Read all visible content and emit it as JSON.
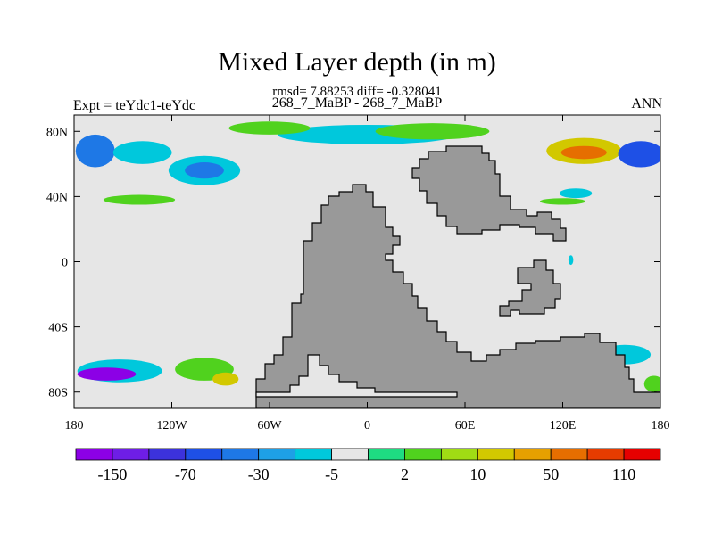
{
  "chart_data": {
    "type": "heatmap",
    "title": "Mixed Layer depth (in m)",
    "stats_line": "rmsd= 7.88253 diff= -0.328041",
    "subtitle": "268_7_MaBP - 268_7_MaBP",
    "left_label": "Expt = teYdc1-teYdc",
    "right_label": "ANN",
    "xlim": [
      -180,
      180
    ],
    "ylim": [
      -90,
      90
    ],
    "x_ticks": [
      {
        "value": -180,
        "label": "180"
      },
      {
        "value": -120,
        "label": "120W"
      },
      {
        "value": -60,
        "label": "60W"
      },
      {
        "value": 0,
        "label": "0"
      },
      {
        "value": 60,
        "label": "60E"
      },
      {
        "value": 120,
        "label": "120E"
      },
      {
        "value": 180,
        "label": "180"
      }
    ],
    "y_ticks": [
      {
        "value": 80,
        "label": "80N"
      },
      {
        "value": 40,
        "label": "40N"
      },
      {
        "value": 0,
        "label": "0"
      },
      {
        "value": -40,
        "label": "40S"
      },
      {
        "value": -80,
        "label": "80S"
      }
    ],
    "background_color": "#e6e6e6",
    "land_color": "#999999",
    "colorbar": {
      "colors": [
        "#8c00e6",
        "#6e1ee6",
        "#3c32dc",
        "#1e50e6",
        "#1e78e6",
        "#1ea0e6",
        "#00c8dc",
        "#e6e6e6",
        "#1edc82",
        "#50d21e",
        "#a0dc14",
        "#d2c800",
        "#e6a000",
        "#e66e00",
        "#e63c00",
        "#e60000"
      ],
      "labels": [
        "-150",
        "-70",
        "-30",
        "-5",
        "2",
        "10",
        "50",
        "110"
      ],
      "label_boundaries": [
        1,
        3,
        5,
        7,
        9,
        11,
        13,
        15
      ]
    },
    "regions": [
      {
        "lon": -167,
        "lat": 68,
        "rx": 12,
        "ry": 10,
        "value": -40
      },
      {
        "lon": -138,
        "lat": 67,
        "rx": 18,
        "ry": 7,
        "value": -8
      },
      {
        "lon": -100,
        "lat": 56,
        "rx": 22,
        "ry": 9,
        "value": -8
      },
      {
        "lon": -100,
        "lat": 56,
        "rx": 12,
        "ry": 5,
        "value": -30
      },
      {
        "lon": -140,
        "lat": 38,
        "rx": 22,
        "ry": 3,
        "value": 5
      },
      {
        "lon": 0,
        "lat": 78,
        "rx": 55,
        "ry": 6,
        "value": -8
      },
      {
        "lon": -60,
        "lat": 82,
        "rx": 25,
        "ry": 4,
        "value": 5
      },
      {
        "lon": 40,
        "lat": 80,
        "rx": 35,
        "ry": 5,
        "value": 5
      },
      {
        "lon": 133,
        "lat": 68,
        "rx": 23,
        "ry": 8,
        "value": 15
      },
      {
        "lon": 133,
        "lat": 67,
        "rx": 14,
        "ry": 4,
        "value": 60
      },
      {
        "lon": 168,
        "lat": 66,
        "rx": 14,
        "ry": 8,
        "value": -60
      },
      {
        "lon": 128,
        "lat": 42,
        "rx": 10,
        "ry": 3,
        "value": -8
      },
      {
        "lon": 120,
        "lat": 37,
        "rx": 14,
        "ry": 2,
        "value": 5
      },
      {
        "lon": 125,
        "lat": 1,
        "rx": 1.5,
        "ry": 3,
        "value": -8
      },
      {
        "lon": -152,
        "lat": -67,
        "rx": 26,
        "ry": 7,
        "value": -8
      },
      {
        "lon": -160,
        "lat": -69,
        "rx": 18,
        "ry": 4,
        "value": -150
      },
      {
        "lon": -100,
        "lat": -66,
        "rx": 18,
        "ry": 7,
        "value": 5
      },
      {
        "lon": -87,
        "lat": -72,
        "rx": 8,
        "ry": 4,
        "value": 30
      },
      {
        "lon": 158,
        "lat": -57,
        "rx": 16,
        "ry": 6,
        "value": -8
      },
      {
        "lon": 176,
        "lat": -75,
        "rx": 6,
        "ry": 5,
        "value": 5
      }
    ]
  }
}
